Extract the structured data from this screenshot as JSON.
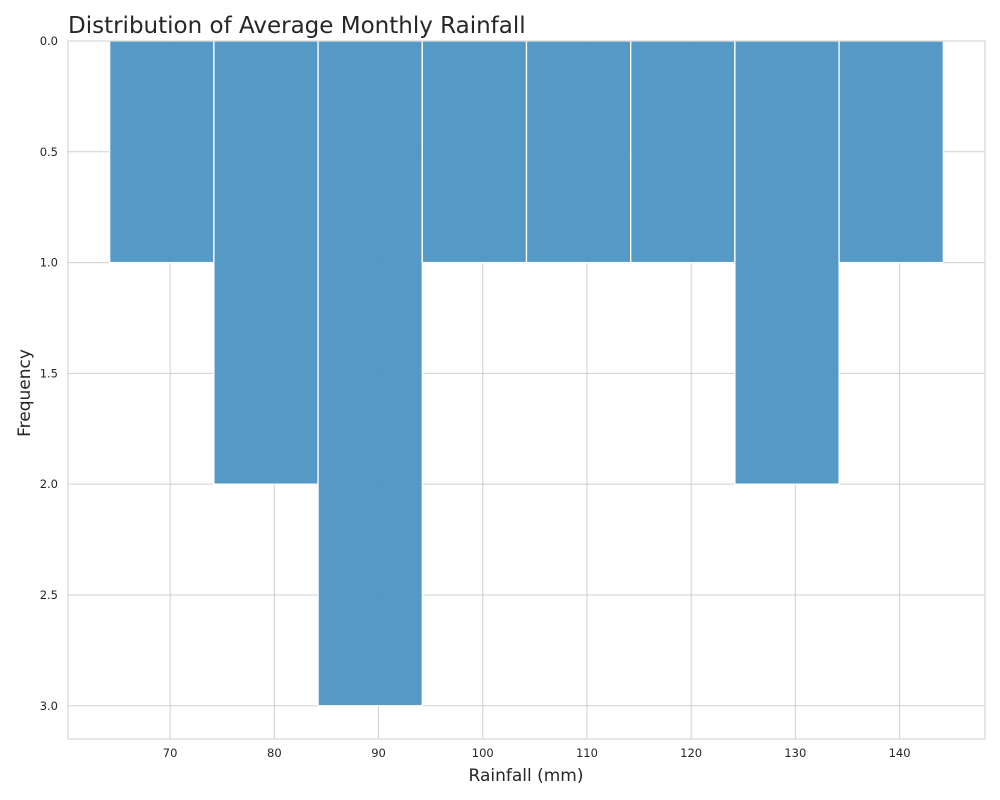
{
  "chart_data": {
    "type": "bar",
    "title": "Distribution of Average Monthly Rainfall",
    "xlabel": "Rainfall (mm)",
    "ylabel": "Frequency",
    "y_inverted": true,
    "bin_edges": [
      64.2,
      74.2,
      84.2,
      94.2,
      104.2,
      114.2,
      124.2,
      134.2,
      144.2
    ],
    "values": [
      1,
      2,
      3,
      1,
      1,
      1,
      2,
      1
    ],
    "xlim": [
      60.2,
      148.2
    ],
    "ylim": [
      3.15,
      0
    ],
    "x_ticks": [
      70,
      80,
      90,
      100,
      110,
      120,
      130,
      140
    ],
    "y_ticks": [
      "0.0",
      "0.5",
      "1.0",
      "1.5",
      "2.0",
      "2.5",
      "3.0"
    ],
    "grid": true,
    "bar_color": "#4c93c4"
  }
}
